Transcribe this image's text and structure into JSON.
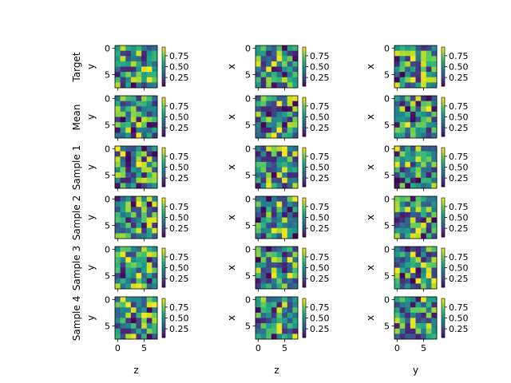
{
  "chart_data": {
    "type": "heatmap",
    "grid": {
      "rows": 6,
      "cols": 3
    },
    "row_labels": [
      "Target",
      "Mean",
      "Sample 1",
      "Sample 2",
      "Sample 3",
      "Sample 4"
    ],
    "col_ylabels": [
      "y",
      "x",
      "x"
    ],
    "col_xlabels": [
      "z",
      "z",
      "y"
    ],
    "image_size": 8,
    "x_ticks": [
      0,
      5
    ],
    "y_ticks": [
      0,
      5
    ],
    "colorbar": {
      "ticks": [
        0.25,
        0.5,
        0.75
      ],
      "tick_labels": [
        "0.25",
        "0.50",
        "0.75"
      ],
      "range": [
        0.05,
        0.95
      ],
      "colormap": "viridis"
    },
    "seed": 20240611
  }
}
